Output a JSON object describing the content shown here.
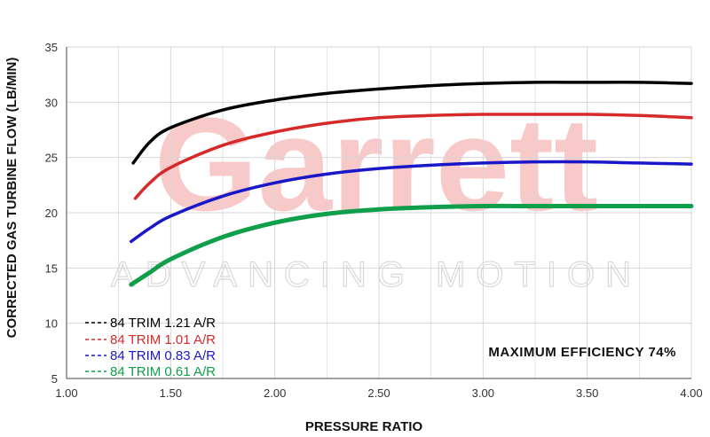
{
  "chart_data": {
    "type": "line",
    "xlabel": "PRESSURE RATIO",
    "ylabel": "CORRECTED GAS TURBINE FLOW (LB/MIN)",
    "xlim": [
      1.0,
      4.0
    ],
    "ylim": [
      5,
      35
    ],
    "x_ticks": [
      "1.00",
      "1.50",
      "2.00",
      "2.50",
      "3.00",
      "3.50",
      "4.00"
    ],
    "y_ticks": [
      "5",
      "10",
      "15",
      "20",
      "25",
      "30",
      "35"
    ],
    "grid": true,
    "legend_position": "bottom-left",
    "annotation": "MAXIMUM EFFICIENCY  74%",
    "watermark": {
      "brand": "Garrett",
      "tagline": "ADVANCING MOTION"
    },
    "series": [
      {
        "name": "84 TRIM 1.21 A/R",
        "color": "#000000",
        "x": [
          1.32,
          1.4,
          1.5,
          1.75,
          2.0,
          2.25,
          2.5,
          2.75,
          3.0,
          3.25,
          3.5,
          3.75,
          4.0
        ],
        "y": [
          24.5,
          26.4,
          27.7,
          29.3,
          30.2,
          30.8,
          31.2,
          31.5,
          31.7,
          31.8,
          31.8,
          31.8,
          31.7
        ]
      },
      {
        "name": "84 TRIM 1.01 A/R",
        "color": "#d62a2a",
        "x": [
          1.33,
          1.4,
          1.5,
          1.75,
          2.0,
          2.25,
          2.5,
          2.75,
          3.0,
          3.25,
          3.5,
          3.75,
          4.0
        ],
        "y": [
          21.3,
          22.7,
          24.1,
          26.1,
          27.3,
          28.1,
          28.6,
          28.8,
          28.9,
          28.9,
          28.9,
          28.8,
          28.6
        ]
      },
      {
        "name": "84 TRIM 0.83 A/R",
        "color": "#1a17c9",
        "x": [
          1.31,
          1.4,
          1.5,
          1.75,
          2.0,
          2.25,
          2.5,
          2.75,
          3.0,
          3.25,
          3.5,
          3.75,
          4.0
        ],
        "y": [
          17.4,
          18.6,
          19.7,
          21.5,
          22.7,
          23.5,
          24.0,
          24.3,
          24.5,
          24.6,
          24.6,
          24.5,
          24.4
        ]
      },
      {
        "name": "84 TRIM 0.61 A/R",
        "color": "#0f9e4a",
        "x": [
          1.31,
          1.4,
          1.5,
          1.75,
          2.0,
          2.25,
          2.5,
          2.75,
          3.0,
          3.25,
          3.5,
          3.75,
          4.0
        ],
        "y": [
          13.5,
          14.6,
          15.8,
          17.8,
          19.1,
          19.9,
          20.3,
          20.5,
          20.6,
          20.6,
          20.6,
          20.6,
          20.6
        ]
      }
    ]
  }
}
